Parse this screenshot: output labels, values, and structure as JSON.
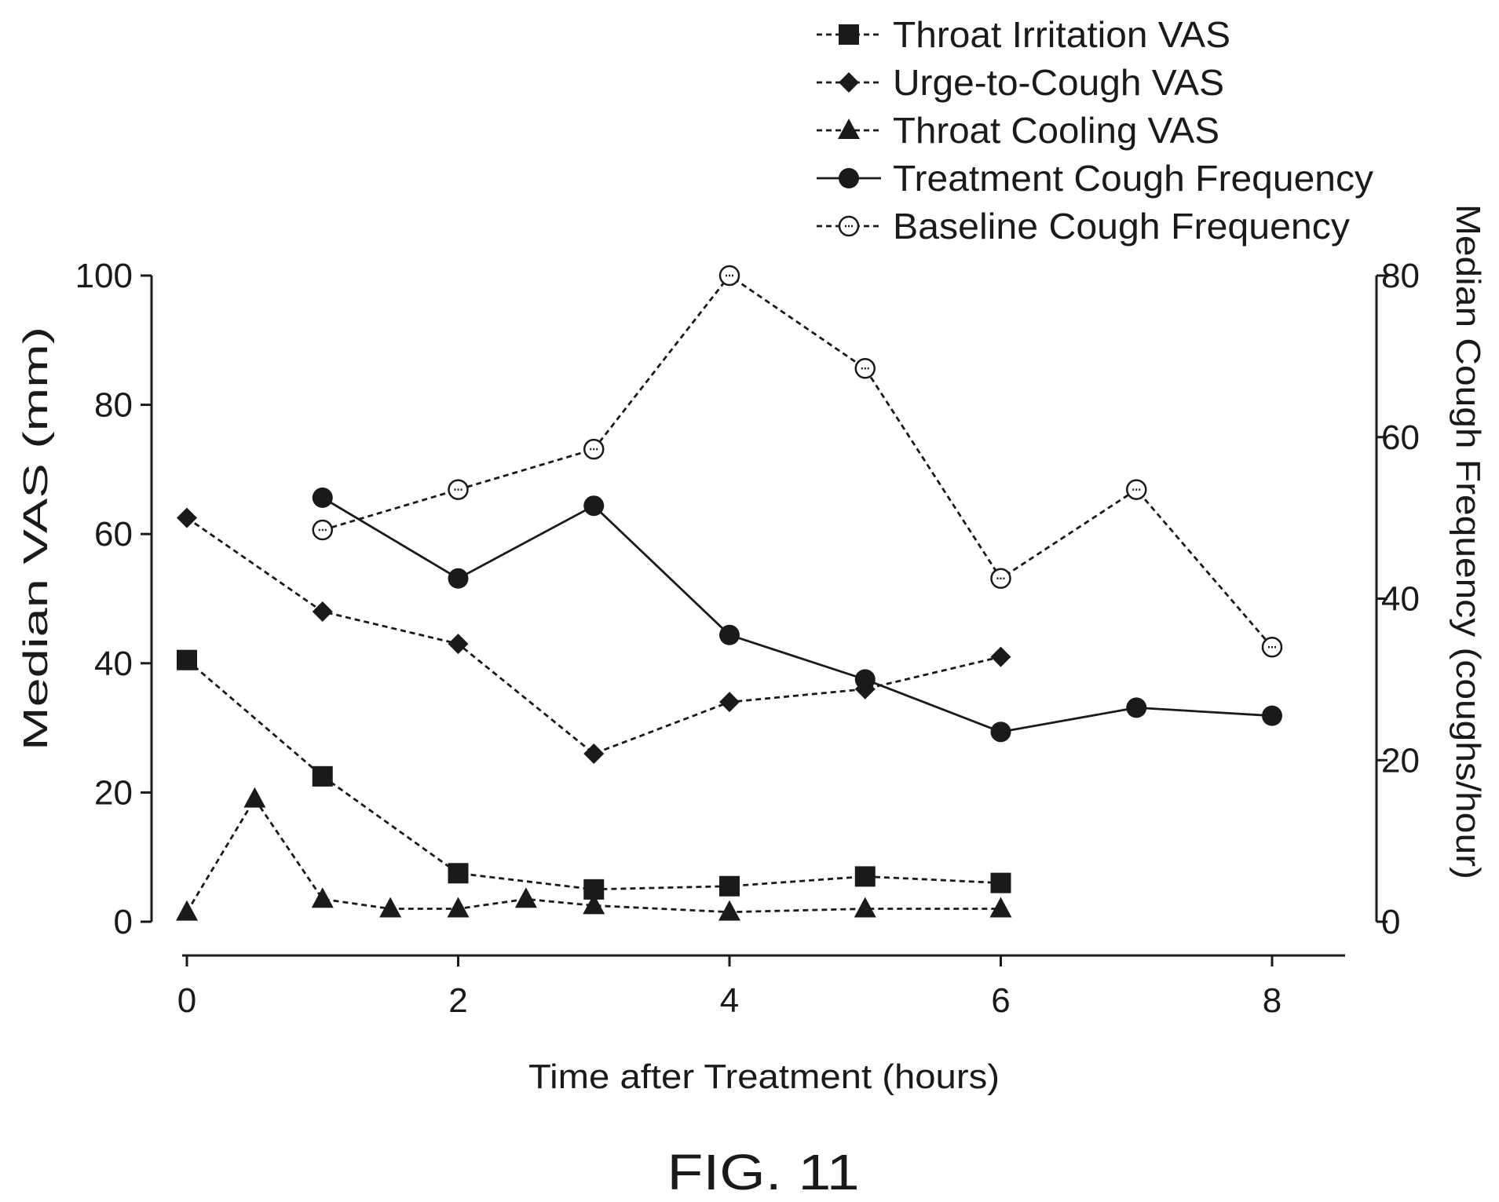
{
  "figure_label": "FIG. 11",
  "chart_data": {
    "type": "line",
    "xlabel": "Time after Treatment (hours)",
    "ylabel_left": "Median VAS (mm)",
    "ylabel_right": "Median Cough Frequency (coughs/hour)",
    "xlim": [
      0,
      8
    ],
    "ylim_left": [
      0,
      100
    ],
    "ylim_right": [
      0,
      80
    ],
    "x_ticks": [
      0,
      2,
      4,
      6,
      8
    ],
    "y_ticks_left": [
      0,
      20,
      40,
      60,
      80,
      100
    ],
    "y_ticks_right": [
      0,
      20,
      40,
      60,
      80
    ],
    "grid": false,
    "legend_position": "top-right",
    "series": [
      {
        "name": "Throat Irritation VAS",
        "axis": "left",
        "marker": "square",
        "line": "dashed",
        "x": [
          0,
          1,
          2,
          3,
          4,
          5,
          6
        ],
        "y": [
          40.5,
          22.5,
          7.5,
          5,
          5.5,
          7,
          6
        ]
      },
      {
        "name": "Urge-to-Cough VAS",
        "axis": "left",
        "marker": "diamond",
        "line": "dashed",
        "x": [
          0,
          1,
          2,
          3,
          4,
          5,
          6
        ],
        "y": [
          62.5,
          48,
          43,
          26,
          34,
          36,
          41
        ]
      },
      {
        "name": "Throat Cooling VAS",
        "axis": "left",
        "marker": "triangle",
        "line": "dashed",
        "x": [
          0,
          0.5,
          1,
          1.5,
          2,
          2.5,
          3,
          4,
          5,
          6
        ],
        "y": [
          1.5,
          19,
          3.5,
          2,
          2,
          3.5,
          2.5,
          1.5,
          2,
          2
        ]
      },
      {
        "name": "Treatment Cough Frequency",
        "axis": "right",
        "marker": "filled-circle",
        "line": "solid",
        "x": [
          1,
          2,
          3,
          4,
          5,
          6,
          7,
          8
        ],
        "y": [
          52.5,
          42.5,
          51.5,
          35.5,
          30,
          23.5,
          26.5,
          25.5
        ]
      },
      {
        "name": "Baseline Cough Frequency",
        "axis": "right",
        "marker": "open-circle",
        "line": "dashed",
        "x": [
          1,
          2,
          3,
          4,
          5,
          6,
          7,
          8
        ],
        "y": [
          48.5,
          53.5,
          58.5,
          80,
          68.5,
          42.5,
          53.5,
          34
        ]
      }
    ]
  }
}
